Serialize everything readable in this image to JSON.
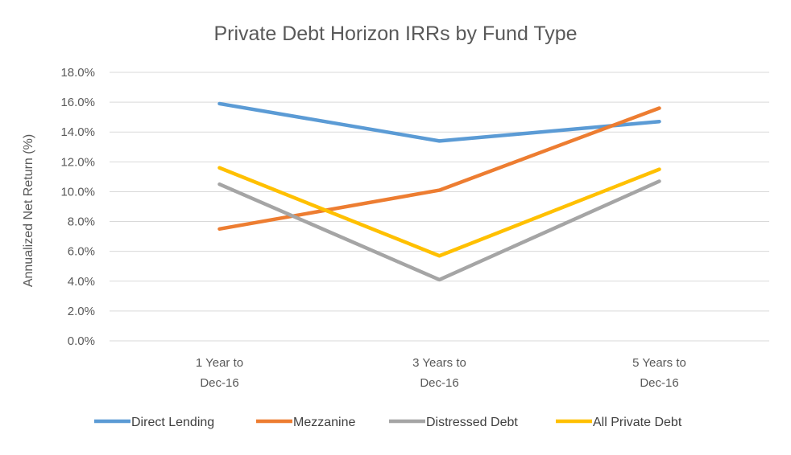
{
  "chart_data": {
    "type": "line",
    "title": "Private Debt Horizon IRRs by Fund Type",
    "xlabel": "",
    "ylabel": "Annualized Net Return (%)",
    "categories": [
      [
        "1 Year to",
        "Dec-16"
      ],
      [
        "3 Years to",
        "Dec-16"
      ],
      [
        "5 Years to",
        "Dec-16"
      ]
    ],
    "ylim": [
      0,
      18
    ],
    "y_ticks": [
      "0.0%",
      "2.0%",
      "4.0%",
      "6.0%",
      "8.0%",
      "10.0%",
      "12.0%",
      "14.0%",
      "16.0%",
      "18.0%"
    ],
    "y_tick_values": [
      0,
      2,
      4,
      6,
      8,
      10,
      12,
      14,
      16,
      18
    ],
    "grid": true,
    "legend_position": "bottom",
    "series": [
      {
        "name": "Direct Lending",
        "color": "#5B9BD5",
        "values": [
          15.9,
          13.4,
          14.7
        ]
      },
      {
        "name": "Mezzanine",
        "color": "#ED7D31",
        "values": [
          7.5,
          10.1,
          15.6
        ]
      },
      {
        "name": "Distressed Debt",
        "color": "#A5A5A5",
        "values": [
          10.5,
          4.1,
          10.7
        ]
      },
      {
        "name": "All Private Debt",
        "color": "#FFC000",
        "values": [
          11.6,
          5.7,
          11.5
        ]
      }
    ]
  }
}
